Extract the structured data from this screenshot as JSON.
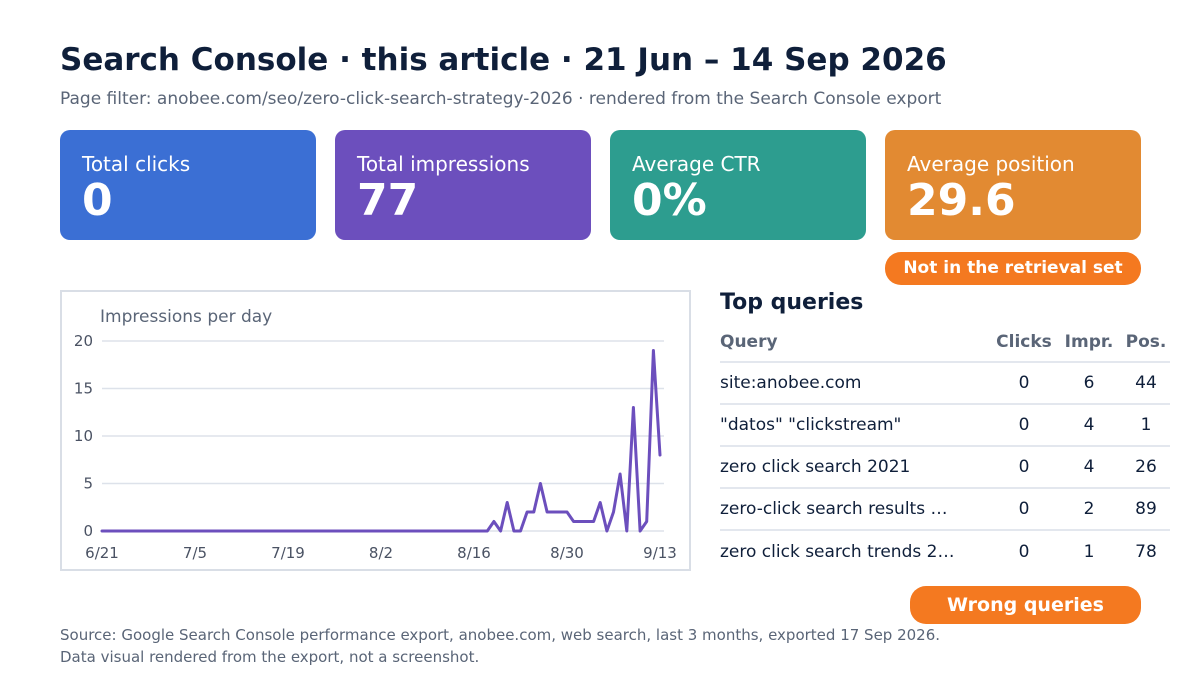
{
  "header": {
    "title": "Search Console · this article · 21 Jun – 14 Sep 2026",
    "subtitle": "Page filter: anobee.com/seo/zero-click-search-strategy-2026 · rendered from the Search Console export"
  },
  "cards": {
    "clicks": {
      "label": "Total clicks",
      "value": "0",
      "color": "#3b6fd4"
    },
    "impressions": {
      "label": "Total impressions",
      "value": "77",
      "color": "#6c4fbd"
    },
    "ctr": {
      "label": "Average CTR",
      "value": "0%",
      "color": "#2d9d8f"
    },
    "position": {
      "label": "Average position",
      "value": "29.6",
      "color": "#e28a32"
    }
  },
  "badges": {
    "retrieval": "Not in the retrieval set",
    "wrong_queries": "Wrong queries",
    "color": "#f47920"
  },
  "chart_data": {
    "type": "line",
    "title": "Impressions per day",
    "xlabel": "",
    "ylabel": "",
    "ylim": [
      0,
      20
    ],
    "yticks": [
      0,
      5,
      10,
      15,
      20
    ],
    "xticks": [
      "6/21",
      "7/5",
      "7/19",
      "8/2",
      "8/16",
      "8/30",
      "9/13"
    ],
    "grid": true,
    "color": "#6c4fbd",
    "series": [
      {
        "values": [
          0,
          0,
          0,
          0,
          0,
          0,
          0,
          0,
          0,
          0,
          0,
          0,
          0,
          0,
          0,
          0,
          0,
          0,
          0,
          0,
          0,
          0,
          0,
          0,
          0,
          0,
          0,
          0,
          0,
          0,
          0,
          0,
          0,
          0,
          0,
          0,
          0,
          0,
          0,
          0,
          0,
          0,
          0,
          0,
          0,
          0,
          0,
          0,
          0,
          0,
          0,
          0,
          0,
          0,
          0,
          0,
          0,
          0,
          0,
          1,
          0,
          3,
          0,
          0,
          2,
          2,
          5,
          2,
          2,
          2,
          2,
          1,
          1,
          1,
          1,
          3,
          0,
          2,
          6,
          0,
          13,
          0,
          1,
          19,
          8
        ]
      }
    ]
  },
  "queries": {
    "title": "Top queries",
    "columns": [
      "Query",
      "Clicks",
      "Impr.",
      "Pos."
    ],
    "rows": [
      {
        "query": "site:anobee.com",
        "clicks": "0",
        "impr": "6",
        "pos": "44"
      },
      {
        "query": "\"datos\" \"clickstream\"",
        "clicks": "0",
        "impr": "4",
        "pos": "1"
      },
      {
        "query": "zero click search 2021",
        "clicks": "0",
        "impr": "4",
        "pos": "26"
      },
      {
        "query": "zero-click search results …",
        "clicks": "0",
        "impr": "2",
        "pos": "89"
      },
      {
        "query": "zero click search trends 2…",
        "clicks": "0",
        "impr": "1",
        "pos": "78"
      }
    ]
  },
  "footer": {
    "line1": "Source: Google Search Console performance export, anobee.com, web search, last 3 months, exported 17 Sep 2026.",
    "line2": "Data visual rendered from the export, not a screenshot."
  }
}
